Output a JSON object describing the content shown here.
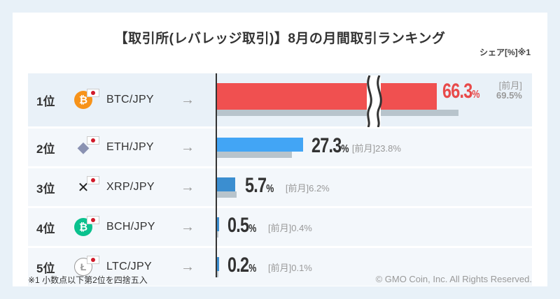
{
  "title": "【取引所(レバレッジ取引)】8月の月間取引ランキング",
  "unit_label": "シェア[%]※1",
  "footnote": "※1 小数点以下第2位を四捨五入",
  "copyright": "© GMO Coin, Inc. All Rights Reserved.",
  "rows": [
    {
      "rank": "1位",
      "pair": "BTC/JPY",
      "value_label": "66.3",
      "pct": "%",
      "prev_tag": "[前月]",
      "prev_value": "69.5%",
      "coin_icon": "bitcoin-icon",
      "coin_glyph": "₿",
      "coin_color": "#f7931a"
    },
    {
      "rank": "2位",
      "pair": "ETH/JPY",
      "value_label": "27.3",
      "pct": "%",
      "prev_tag": "[前月]",
      "prev_value": "23.8%",
      "coin_icon": "ethereum-icon",
      "coin_glyph": "◆",
      "coin_color": "#8a92b2"
    },
    {
      "rank": "3位",
      "pair": "XRP/JPY",
      "value_label": "5.7",
      "pct": "%",
      "prev_tag": "[前月]",
      "prev_value": "6.2%",
      "coin_icon": "xrp-icon",
      "coin_glyph": "✕",
      "coin_color": "#222222"
    },
    {
      "rank": "4位",
      "pair": "BCH/JPY",
      "value_label": "0.5",
      "pct": "%",
      "prev_tag": "[前月]",
      "prev_value": "0.4%",
      "coin_icon": "bitcoin-cash-icon",
      "coin_glyph": "₿",
      "coin_color": "#0ac18e"
    },
    {
      "rank": "5位",
      "pair": "LTC/JPY",
      "value_label": "0.2",
      "pct": "%",
      "prev_tag": "[前月]",
      "prev_value": "0.1%",
      "coin_icon": "litecoin-icon",
      "coin_glyph": "Ł",
      "coin_color": "#bfbbbb"
    }
  ],
  "colors": {
    "first": "#f05050",
    "second": "#42a5f5",
    "others": "#3b8ed0",
    "previous": "#b8c4cc",
    "first_value": "#e84a4a",
    "value": "#333333"
  },
  "chart_data": {
    "type": "bar",
    "orientation": "horizontal",
    "title": "【取引所(レバレッジ取引)】8月の月間取引ランキング",
    "ylabel": "シェア[%]※1",
    "categories": [
      "BTC/JPY",
      "ETH/JPY",
      "XRP/JPY",
      "BCH/JPY",
      "LTC/JPY"
    ],
    "series": [
      {
        "name": "",
        "values": [
          66.3,
          27.3,
          5.7,
          0.5,
          0.2
        ]
      },
      {
        "name": "[前月]",
        "values": [
          69.5,
          23.8,
          6.2,
          0.4,
          0.1
        ]
      }
    ],
    "axis_break": true,
    "grid": false,
    "legend": "none"
  }
}
